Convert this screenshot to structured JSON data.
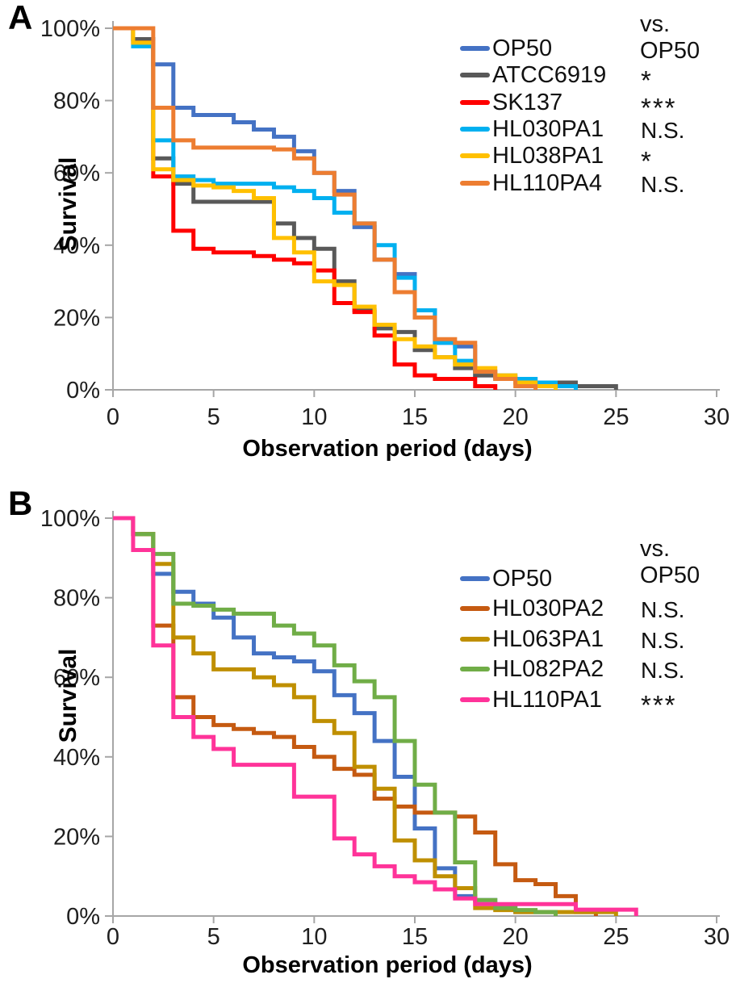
{
  "legend_note": "vs. OP50",
  "chart_data": [
    {
      "panel": "A",
      "type": "line",
      "step": true,
      "title": "",
      "xlabel": "Observation period (days)",
      "ylabel": "Survival",
      "xlim": [
        0,
        30
      ],
      "ylim_percent": [
        0,
        100
      ],
      "x_ticks": [
        0,
        5,
        10,
        15,
        20,
        25,
        30
      ],
      "y_ticks_percent": [
        0,
        20,
        40,
        60,
        80,
        100
      ],
      "y_tick_labels": [
        "0%",
        "20%",
        "40%",
        "60%",
        "80%",
        "100%"
      ],
      "grid": false,
      "legend_header": "vs. OP50",
      "legend_position": "top-right",
      "first_day": 0,
      "day_interval": 1,
      "values_unit": "percent surviving; one value per day, held until next day (step curve)",
      "series": [
        {
          "name": "OP50",
          "color": "#4472C4",
          "significance_vs_op50": "",
          "values": [
            100,
            97,
            90,
            78,
            76,
            76,
            74,
            72,
            70,
            66,
            60,
            55,
            45,
            36,
            32,
            22,
            13,
            12,
            4,
            3,
            2,
            1,
            0
          ]
        },
        {
          "name": "ATCC6919",
          "color": "#595959",
          "significance_vs_op50": "*",
          "values": [
            100,
            97,
            64,
            57,
            52,
            52,
            52,
            52,
            46,
            42,
            39,
            30,
            22,
            17,
            16,
            11,
            9,
            6,
            4,
            3.5,
            3,
            2,
            2,
            1,
            1,
            0
          ]
        },
        {
          "name": "SK137",
          "color": "#FF0000",
          "significance_vs_op50": "***",
          "values": [
            100,
            96,
            59,
            44,
            39,
            38,
            38,
            37,
            36,
            35,
            33,
            24,
            21.5,
            15,
            7,
            4,
            3,
            3,
            1,
            0
          ]
        },
        {
          "name": "HL030PA1",
          "color": "#00B0F0",
          "significance_vs_op50": "N.S.",
          "values": [
            100,
            95,
            69,
            59,
            58,
            57,
            57,
            57,
            56,
            55,
            53,
            49,
            46,
            40,
            31,
            22,
            13,
            8,
            5,
            4,
            3,
            2,
            1,
            0
          ]
        },
        {
          "name": "HL038PA1",
          "color": "#FFC000",
          "significance_vs_op50": "*",
          "values": [
            100,
            96,
            61,
            58,
            56.5,
            56,
            55,
            53,
            42,
            38,
            30,
            29,
            23,
            18,
            14,
            12,
            9,
            7,
            6,
            4,
            2,
            1,
            0
          ]
        },
        {
          "name": "HL110PA4",
          "color": "#ED7D31",
          "significance_vs_op50": "N.S.",
          "values": [
            100,
            100,
            78,
            69,
            67,
            67,
            67,
            67,
            66.5,
            64,
            60,
            54,
            46,
            36,
            27,
            20,
            14,
            13,
            5,
            3,
            1,
            0
          ]
        }
      ]
    },
    {
      "panel": "B",
      "type": "line",
      "step": true,
      "title": "",
      "xlabel": "Observation period (days)",
      "ylabel": "Survival",
      "xlim": [
        0,
        30
      ],
      "ylim_percent": [
        0,
        100
      ],
      "x_ticks": [
        0,
        5,
        10,
        15,
        20,
        25,
        30
      ],
      "y_ticks_percent": [
        0,
        20,
        40,
        60,
        80,
        100
      ],
      "y_tick_labels": [
        "0%",
        "20%",
        "40%",
        "60%",
        "80%",
        "100%"
      ],
      "grid": false,
      "legend_header": "vs. OP50",
      "legend_position": "top-right",
      "first_day": 0,
      "day_interval": 1,
      "values_unit": "percent surviving; one value per day, held until next day (step curve)",
      "series": [
        {
          "name": "OP50",
          "color": "#4472C4",
          "significance_vs_op50": "",
          "values": [
            100,
            96,
            86,
            81.5,
            78.5,
            75,
            70,
            66,
            65,
            64,
            61.5,
            55.5,
            51,
            44,
            35,
            22,
            12,
            5,
            4,
            2,
            1,
            1,
            0
          ]
        },
        {
          "name": "HL030PA2",
          "color": "#C55A11",
          "significance_vs_op50": "N.S.",
          "values": [
            100,
            96,
            73,
            55,
            50,
            48,
            47,
            46,
            45,
            42.5,
            40,
            37,
            35.5,
            29.5,
            27.5,
            26,
            26,
            25,
            21,
            13,
            9,
            8,
            5,
            1,
            0
          ]
        },
        {
          "name": "HL063PA1",
          "color": "#BF8F00",
          "significance_vs_op50": "N.S.",
          "values": [
            100,
            96,
            88.5,
            70,
            66,
            62,
            62,
            60,
            58,
            55,
            49,
            46,
            37.5,
            32,
            19,
            14,
            10,
            7,
            2,
            1.5,
            1,
            1,
            1,
            1,
            1,
            0
          ]
        },
        {
          "name": "HL082PA2",
          "color": "#70AD47",
          "significance_vs_op50": "N.S.",
          "values": [
            100,
            96,
            91,
            78.5,
            78,
            77,
            76,
            76,
            73,
            71,
            68,
            63,
            59,
            55,
            44,
            33,
            26,
            13.5,
            4,
            2,
            1.5,
            1,
            0
          ]
        },
        {
          "name": "HL110PA1",
          "color": "#FF3399",
          "significance_vs_op50": "***",
          "values": [
            100,
            92,
            68,
            50,
            45,
            42,
            38,
            38,
            38,
            30,
            30,
            19.5,
            15.5,
            12.5,
            10,
            8.5,
            6.7,
            4.4,
            3,
            3,
            3,
            3,
            3,
            1.6,
            1.6,
            1.6,
            0
          ]
        }
      ]
    }
  ]
}
